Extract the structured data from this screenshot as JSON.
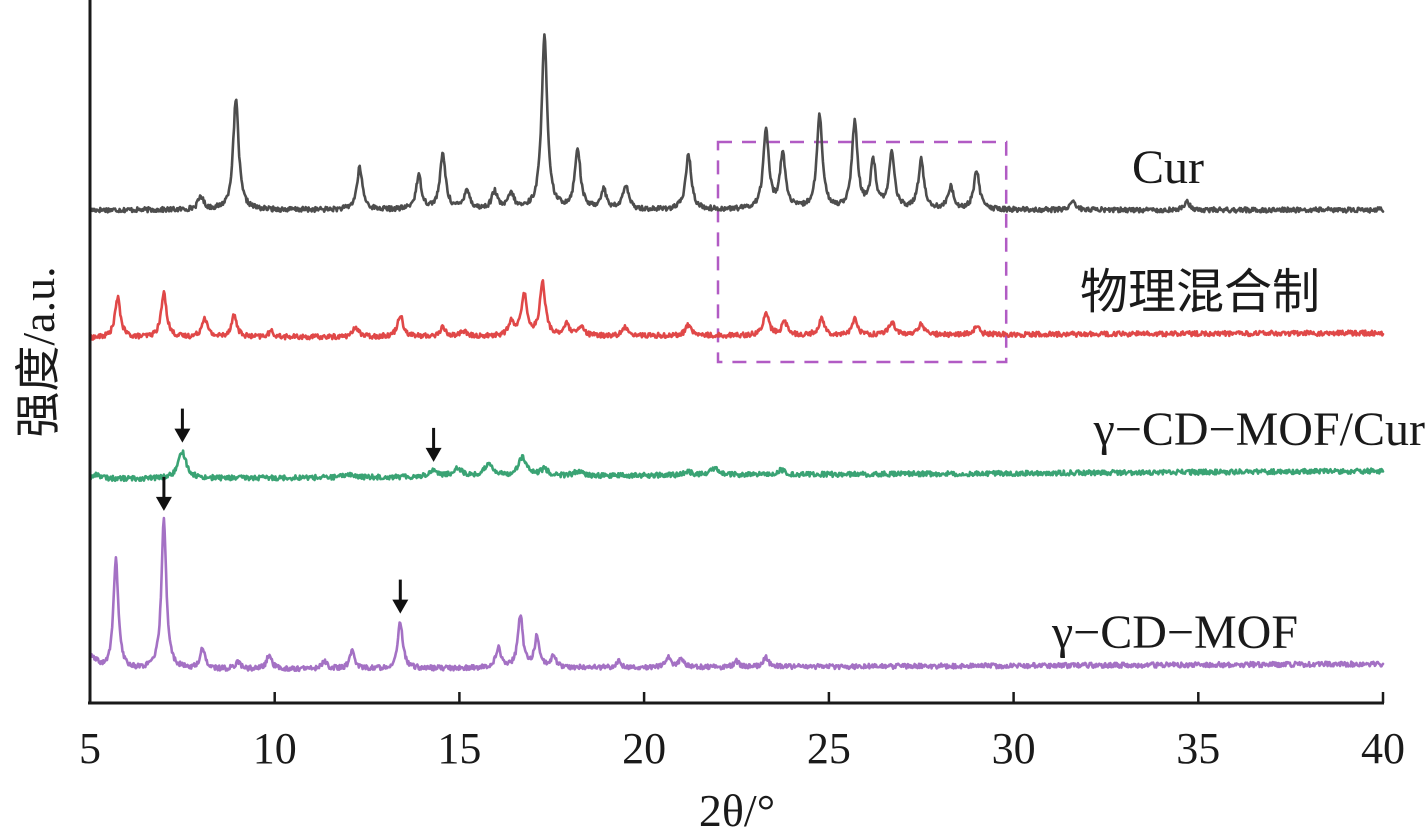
{
  "chart_data": {
    "type": "line",
    "xlabel": "2θ/°",
    "ylabel": "强度/a.u.",
    "xlim": [
      5,
      40
    ],
    "x_ticks": [
      "5",
      "10",
      "15",
      "20",
      "25",
      "30",
      "35",
      "40"
    ],
    "grid": false,
    "highlight_box": {
      "x_range": [
        22,
        29.8
      ],
      "color": "#b15bc4",
      "style": "dashed"
    },
    "series": [
      {
        "name": "Cur",
        "color": "#4d4d4d",
        "peaks": [
          [
            8.0,
            0.12
          ],
          [
            8.95,
            1.0
          ],
          [
            12.3,
            0.38
          ],
          [
            13.9,
            0.3
          ],
          [
            14.55,
            0.5
          ],
          [
            15.2,
            0.18
          ],
          [
            15.95,
            0.16
          ],
          [
            16.4,
            0.14
          ],
          [
            17.3,
            1.58
          ],
          [
            18.2,
            0.55
          ],
          [
            18.9,
            0.18
          ],
          [
            19.5,
            0.22
          ],
          [
            21.2,
            0.5
          ],
          [
            23.3,
            0.72
          ],
          [
            23.75,
            0.5
          ],
          [
            24.75,
            0.85
          ],
          [
            25.7,
            0.78
          ],
          [
            26.2,
            0.42
          ],
          [
            26.7,
            0.5
          ],
          [
            27.5,
            0.45
          ],
          [
            28.3,
            0.2
          ],
          [
            29.0,
            0.36
          ],
          [
            31.6,
            0.08
          ],
          [
            34.7,
            0.07
          ]
        ]
      },
      {
        "name": "物理混合制",
        "color": "#e04848",
        "peaks": [
          [
            5.75,
            0.36
          ],
          [
            7.0,
            0.4
          ],
          [
            8.1,
            0.18
          ],
          [
            8.9,
            0.2
          ],
          [
            9.9,
            0.05
          ],
          [
            12.2,
            0.09
          ],
          [
            13.4,
            0.2
          ],
          [
            14.55,
            0.08
          ],
          [
            15.1,
            0.05
          ],
          [
            16.4,
            0.12
          ],
          [
            16.75,
            0.38
          ],
          [
            17.25,
            0.48
          ],
          [
            17.9,
            0.1
          ],
          [
            18.3,
            0.08
          ],
          [
            19.5,
            0.08
          ],
          [
            21.2,
            0.1
          ],
          [
            23.3,
            0.2
          ],
          [
            23.8,
            0.12
          ],
          [
            24.8,
            0.15
          ],
          [
            25.7,
            0.14
          ],
          [
            26.7,
            0.12
          ],
          [
            27.5,
            0.1
          ],
          [
            29.0,
            0.07
          ]
        ]
      },
      {
        "name": "γ−CD−MOF/Cur",
        "color": "#3aa374",
        "peaks": [
          [
            5.2,
            0.04
          ],
          [
            7.5,
            0.24
          ],
          [
            12.0,
            0.03
          ],
          [
            14.3,
            0.06
          ],
          [
            14.95,
            0.08
          ],
          [
            15.8,
            0.12
          ],
          [
            16.7,
            0.17
          ],
          [
            17.3,
            0.06
          ],
          [
            18.2,
            0.04
          ],
          [
            21.2,
            0.03
          ],
          [
            21.9,
            0.06
          ],
          [
            23.7,
            0.04
          ]
        ]
      },
      {
        "name": "γ−CD−MOF",
        "color": "#a471c4",
        "peaks": [
          [
            5.7,
            1.0
          ],
          [
            7.0,
            1.35
          ],
          [
            8.05,
            0.19
          ],
          [
            9.0,
            0.07
          ],
          [
            9.85,
            0.13
          ],
          [
            11.35,
            0.07
          ],
          [
            12.1,
            0.16
          ],
          [
            13.4,
            0.42
          ],
          [
            16.05,
            0.18
          ],
          [
            16.65,
            0.48
          ],
          [
            17.1,
            0.28
          ],
          [
            17.55,
            0.1
          ],
          [
            19.3,
            0.06
          ],
          [
            20.65,
            0.1
          ],
          [
            21.0,
            0.07
          ],
          [
            22.5,
            0.05
          ],
          [
            23.3,
            0.09
          ]
        ]
      }
    ],
    "arrows": [
      {
        "series": "γ−CD−MOF/Cur",
        "x": 7.5
      },
      {
        "series": "γ−CD−MOF/Cur",
        "x": 14.3
      },
      {
        "series": "γ−CD−MOF",
        "x": 7.0
      },
      {
        "series": "γ−CD−MOF",
        "x": 13.4
      }
    ]
  }
}
